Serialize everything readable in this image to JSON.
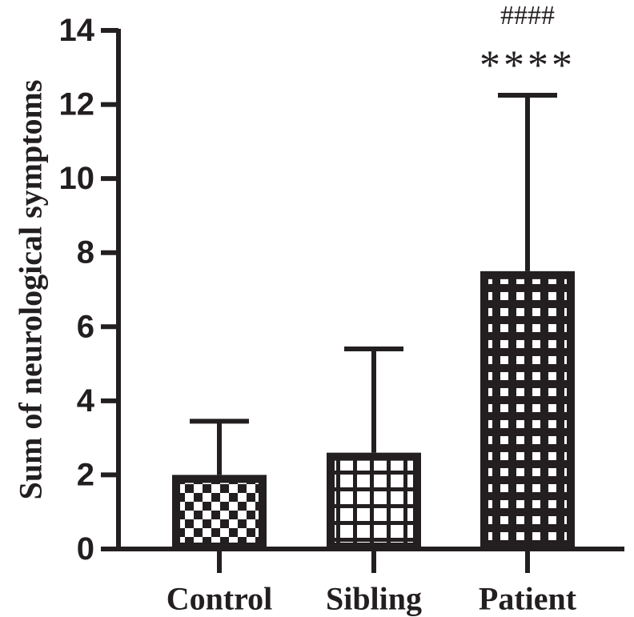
{
  "chart_data": {
    "type": "bar",
    "title": "",
    "xlabel": "",
    "ylabel": "Sum of neurological symptoms",
    "ylim": [
      0,
      14
    ],
    "yticks": [
      0,
      2,
      4,
      6,
      8,
      10,
      12,
      14
    ],
    "categories": [
      "Control",
      "Sibling",
      "Patient"
    ],
    "values": [
      2.0,
      2.6,
      7.5
    ],
    "error_upper": [
      3.45,
      5.4,
      12.25
    ],
    "patterns": [
      "checkerboard",
      "grid",
      "grid-fine"
    ],
    "annotations": [
      {
        "category": "Patient",
        "text": "****",
        "y": 13.05,
        "size": "large"
      },
      {
        "category": "Patient",
        "text": "####",
        "y": 14.4,
        "size": "small"
      }
    ],
    "colors": {
      "ink": "#231f20",
      "background": "#ffffff"
    }
  }
}
